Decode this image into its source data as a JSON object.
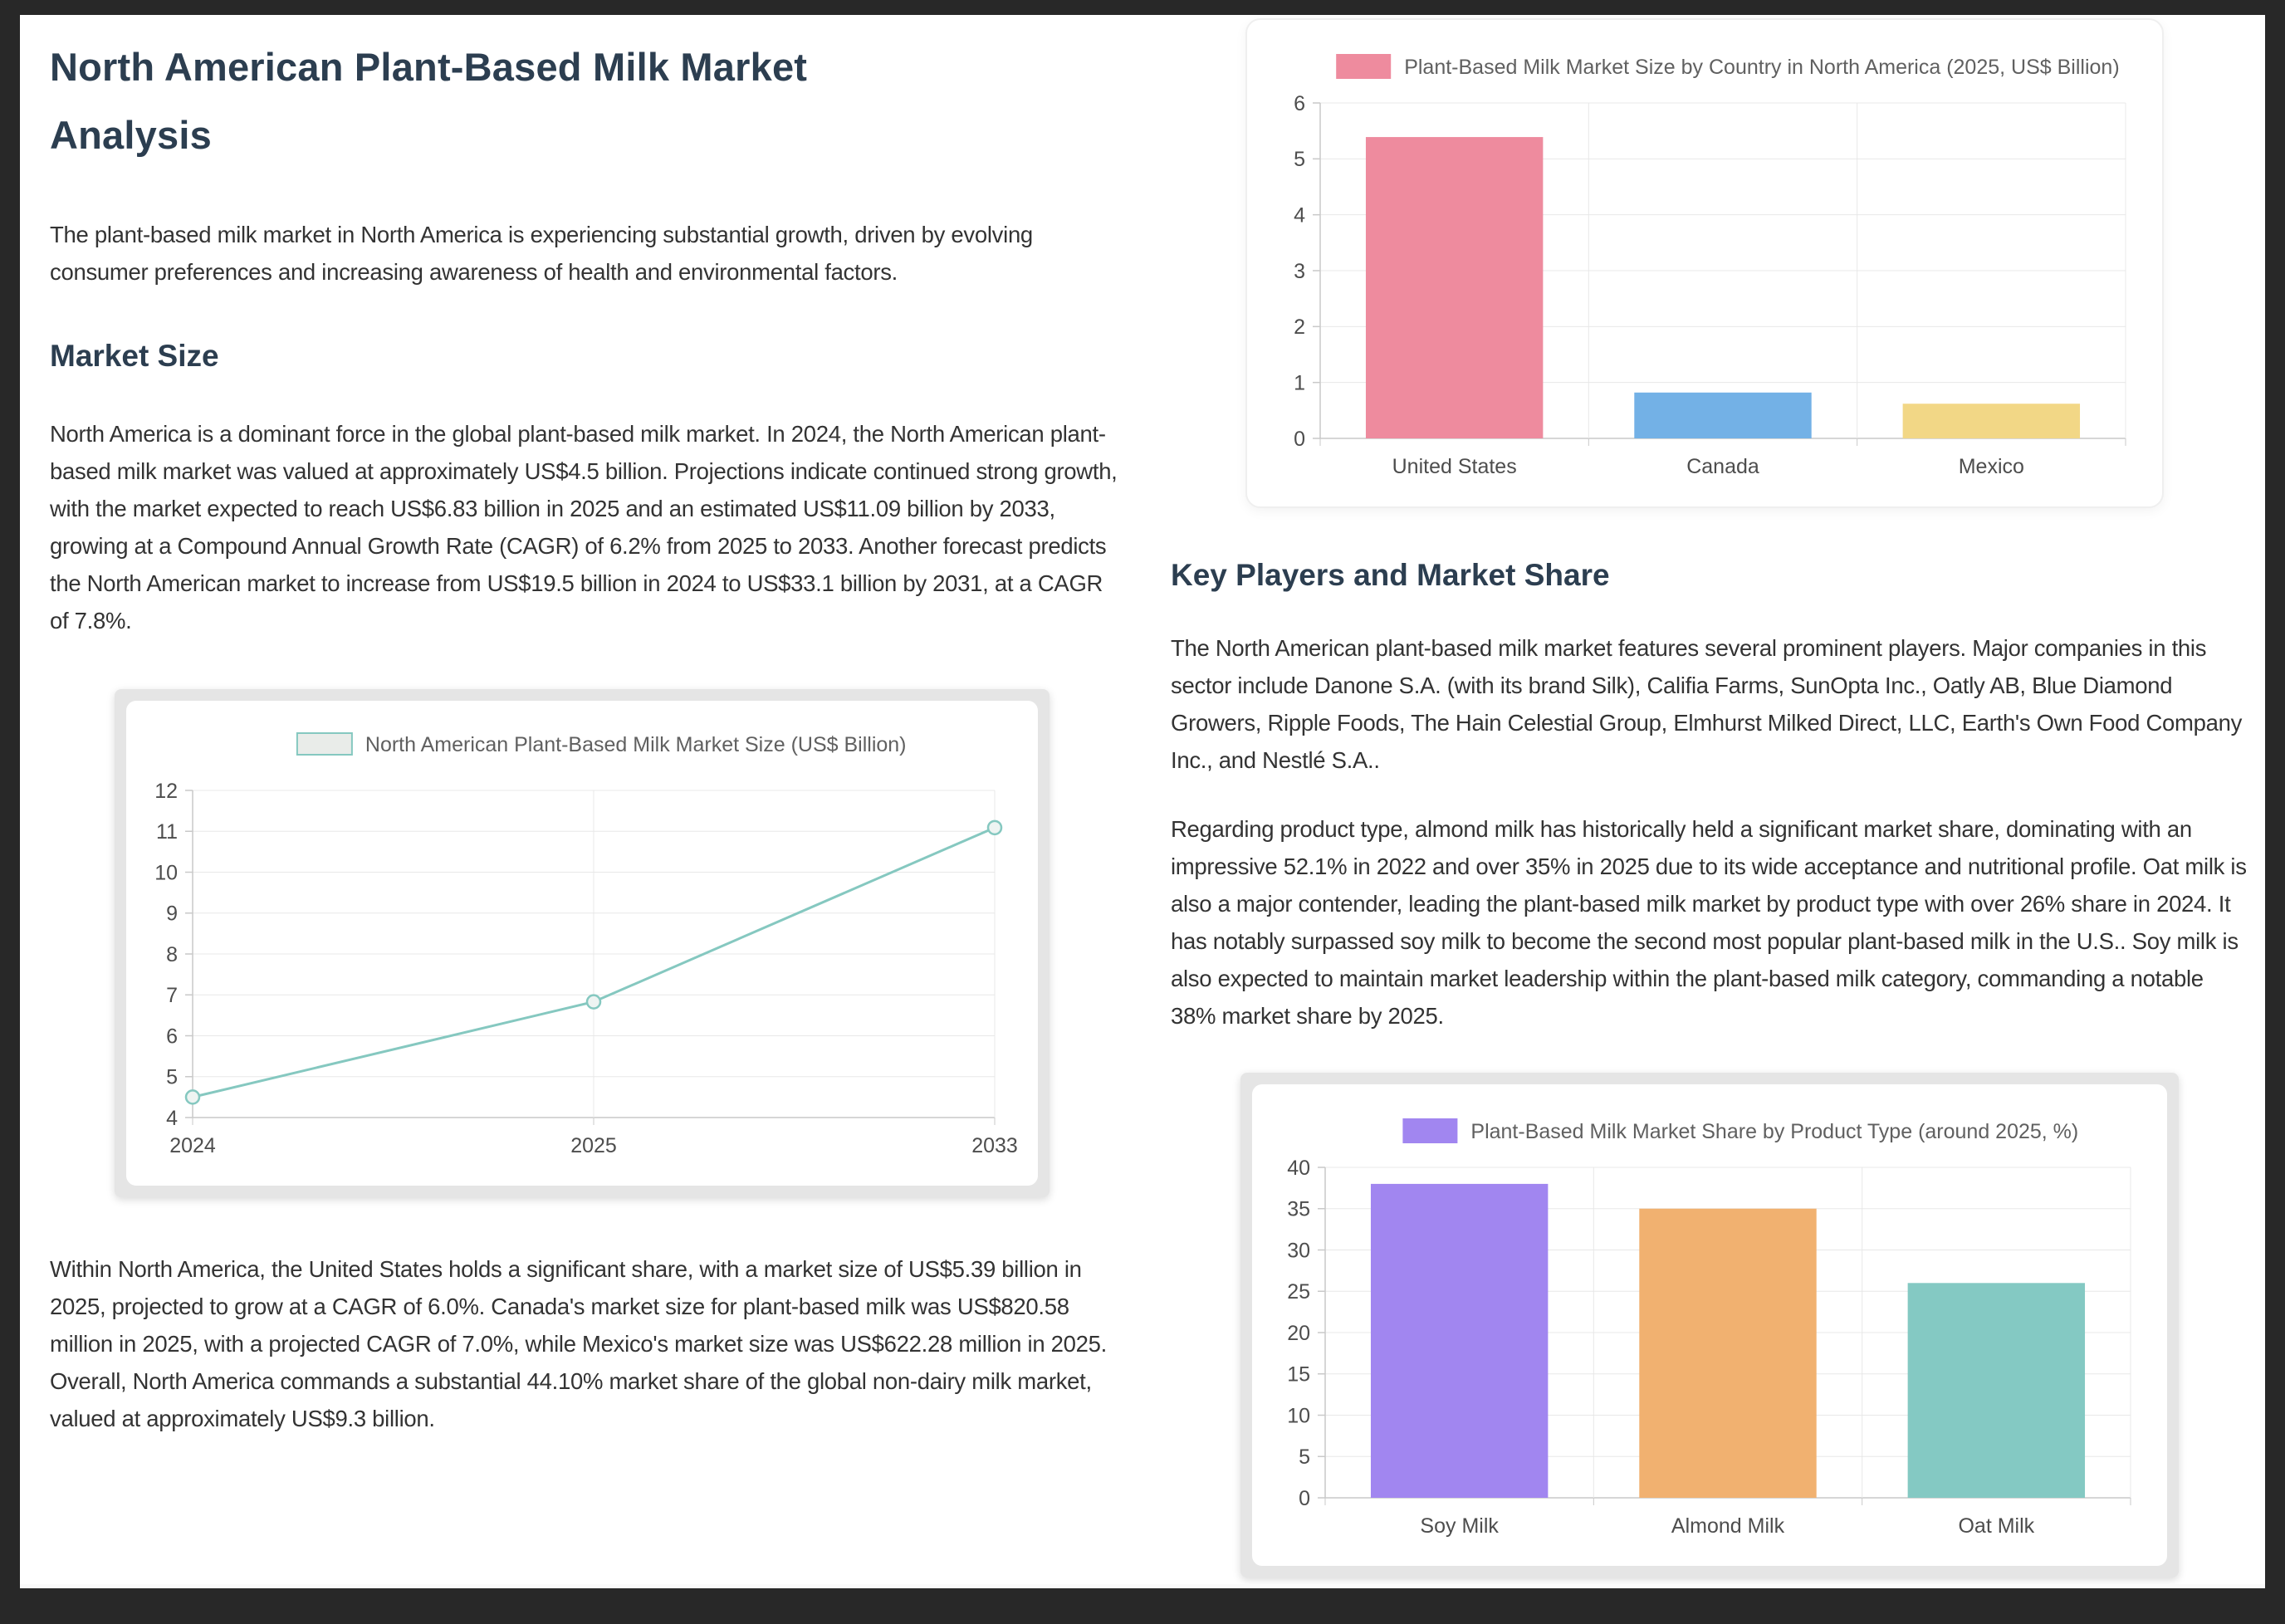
{
  "page": {
    "title": "North American Plant-Based Milk Market Analysis",
    "intro": "The plant-based milk market in North America is experiencing substantial growth, driven by evolving consumer preferences and increasing awareness of health and environmental factors.",
    "market_size": {
      "heading": "Market Size",
      "p1": "North America is a dominant force in the global plant-based milk market. In 2024, the North American plant-based milk market was valued at approximately US$4.5 billion. Projections indicate continued strong growth, with the market expected to reach US$6.83 billion in 2025 and an estimated US$11.09 billion by 2033, growing at a Compound Annual Growth Rate (CAGR) of 6.2% from 2025 to 2033. Another forecast predicts the North American market to increase from US$19.5 billion in 2024 to US$33.1 billion by 2031, at a CAGR of 7.8%.",
      "p2": "Within North America, the United States holds a significant share, with a market size of US$5.39 billion in 2025, projected to grow at a CAGR of 6.0%. Canada's market size for plant-based milk was US$820.58 million in 2025, with a projected CAGR of 7.0%, while Mexico's market size was US$622.28 million in 2025. Overall, North America commands a substantial 44.10% market share of the global non-dairy milk market, valued at approximately US$9.3 billion."
    },
    "key_players": {
      "heading": "Key Players and Market Share",
      "p1": "The North American plant-based milk market features several prominent players. Major companies in this sector include Danone S.A. (with its brand Silk), Califia Farms, SunOpta Inc., Oatly AB, Blue Diamond Growers, Ripple Foods, The Hain Celestial Group, Elmhurst Milked Direct, LLC, Earth's Own Food Company Inc., and Nestlé S.A..",
      "p2": "Regarding product type, almond milk has historically held a significant market share, dominating with an impressive 52.1% in 2022 and over 35% in 2025 due to its wide acceptance and nutritional profile. Oat milk is also a major contender, leading the plant-based milk market by product type with over 26% share in 2024. It has notably surpassed soy milk to become the second most popular plant-based milk in the U.S.. Soy milk is also expected to maintain market leadership within the plant-based milk category, commanding a notable 38% market share by 2025."
    }
  },
  "colors": {
    "page_background": "#282828",
    "heading": "#2c3e50",
    "body_text": "#333333",
    "axis_label": "#4d4d4d",
    "legend_text": "#606060",
    "gridline": "#e8e8e8",
    "axis_line": "#c9c9c9"
  },
  "chart_data": [
    {
      "id": "country-bar",
      "type": "bar",
      "title": "Plant-Based Milk Market Size by Country in North America (2025, US$ Billion)",
      "categories": [
        "United States",
        "Canada",
        "Mexico"
      ],
      "values": [
        5.39,
        0.82,
        0.62
      ],
      "bar_colors": [
        "#ee8b9e",
        "#73b1e6",
        "#f2d786"
      ],
      "legend_color": "#ee8b9e",
      "ylim": [
        0,
        6
      ],
      "ytick_step": 1,
      "grid": true,
      "legend_position": "top"
    },
    {
      "id": "market-size-line",
      "type": "line",
      "title": "North American Plant-Based Milk Market Size (US$ Billion)",
      "x": [
        "2024",
        "2025",
        "2033"
      ],
      "values": [
        4.5,
        6.83,
        11.09
      ],
      "line_color": "#85c8c0",
      "marker_fill": "#eef4f2",
      "legend_fill": "#e9ece9",
      "ylim": [
        4,
        12
      ],
      "ytick_step": 1,
      "grid": true,
      "legend_position": "top"
    },
    {
      "id": "product-share-bar",
      "type": "bar",
      "title": "Plant-Based Milk Market Share by Product Type (around 2025, %)",
      "categories": [
        "Soy Milk",
        "Almond Milk",
        "Oat Milk"
      ],
      "values": [
        38,
        35,
        26
      ],
      "bar_colors": [
        "#a186f0",
        "#f1b170",
        "#84c9c3"
      ],
      "legend_color": "#a186f0",
      "ylim": [
        0,
        40
      ],
      "ytick_step": 5,
      "grid": true,
      "legend_position": "top"
    }
  ]
}
